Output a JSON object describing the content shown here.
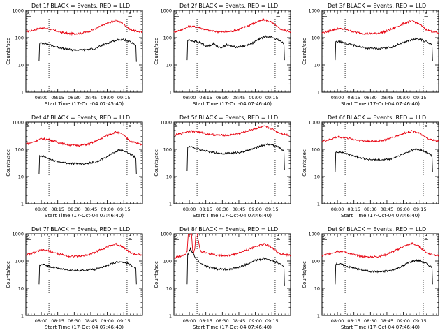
{
  "chart_data": [
    {
      "type": "line",
      "title": "Det 1f BLACK = Events, RED = LLD",
      "xlabel": "Start Time (17-Oct-04 07:45:40)",
      "ylabel": "Counts/sec",
      "x_ticks": [
        "08:00",
        "08:15",
        "08:30",
        "08:45",
        "09:00",
        "09:15"
      ],
      "y_ticks": [
        "1",
        "10",
        "100",
        "1000"
      ],
      "yscale": "log",
      "ylim": [
        1,
        1000
      ],
      "x_start_min": 0,
      "x_end_min": 106,
      "markers": {
        "start": "S",
        "end": "E"
      },
      "vlines_min": [
        21,
        92
      ],
      "series": [
        {
          "name": "BLACK = Events",
          "color": "#000000",
          "x_min": [
            12,
            12.5,
            16,
            24,
            33,
            43,
            53,
            63,
            72,
            79,
            85,
            90,
            95,
            98,
            100,
            100.5
          ],
          "values": [
            14,
            62,
            64,
            50,
            41,
            35,
            36,
            40,
            58,
            75,
            85,
            82,
            68,
            58,
            52,
            13
          ]
        },
        {
          "name": "RED = LLD",
          "color": "#e8000e",
          "x_min": [
            0,
            6,
            14,
            21,
            30,
            40,
            50,
            58,
            66,
            74,
            82,
            88,
            95,
            100,
            106
          ],
          "values": [
            165,
            185,
            230,
            215,
            165,
            140,
            145,
            175,
            240,
            340,
            430,
            340,
            200,
            175,
            160
          ]
        }
      ]
    },
    {
      "type": "line",
      "title": "Det 2f BLACK = Events, RED = LLD",
      "xlabel": "Start Time (17-Oct-04 07:46:40)",
      "ylabel": "Counts/sec",
      "x_ticks": [
        "08:00",
        "08:15",
        "08:30",
        "08:45",
        "09:00",
        "09:15"
      ],
      "y_ticks": [
        "1",
        "10",
        "100",
        "1000"
      ],
      "yscale": "log",
      "ylim": [
        1,
        1000
      ],
      "x_start_min": 0,
      "x_end_min": 106,
      "markers": {
        "start": "S",
        "end": "E"
      },
      "vlines_min": [
        21,
        92
      ],
      "series": [
        {
          "name": "BLACK = Events",
          "color": "#000000",
          "x_min": [
            12,
            12.5,
            16,
            24,
            30,
            36,
            42,
            48,
            56,
            64,
            72,
            79,
            85,
            90,
            95,
            98,
            100,
            100.5
          ],
          "values": [
            15,
            80,
            78,
            65,
            48,
            60,
            42,
            55,
            45,
            50,
            65,
            95,
            115,
            100,
            80,
            70,
            62,
            15
          ]
        },
        {
          "name": "RED = LLD",
          "color": "#e8000e",
          "x_min": [
            0,
            6,
            14,
            21,
            30,
            40,
            50,
            58,
            66,
            74,
            82,
            88,
            95,
            100,
            106
          ],
          "values": [
            165,
            190,
            260,
            250,
            190,
            165,
            165,
            195,
            260,
            360,
            460,
            380,
            230,
            190,
            165
          ]
        }
      ]
    },
    {
      "type": "line",
      "title": "Det 3f BLACK = Events, RED = LLD",
      "xlabel": "Start Time (17-Oct-04 07:46:40)",
      "ylabel": "Counts/sec",
      "x_ticks": [
        "08:00",
        "08:15",
        "08:30",
        "08:45",
        "09:00",
        "09:15"
      ],
      "y_ticks": [
        "1",
        "10",
        "100",
        "1000"
      ],
      "yscale": "log",
      "ylim": [
        1,
        1000
      ],
      "x_start_min": 0,
      "x_end_min": 106,
      "markers": {
        "start": "S",
        "end": "E"
      },
      "vlines_min": [
        21,
        92
      ],
      "series": [
        {
          "name": "BLACK = Events",
          "color": "#000000",
          "x_min": [
            12,
            12.5,
            16,
            24,
            33,
            43,
            53,
            63,
            72,
            79,
            85,
            90,
            95,
            98,
            100,
            100.5
          ],
          "values": [
            15,
            70,
            72,
            58,
            48,
            40,
            40,
            45,
            62,
            80,
            88,
            85,
            70,
            60,
            52,
            14
          ]
        },
        {
          "name": "RED = LLD",
          "color": "#e8000e",
          "x_min": [
            0,
            6,
            14,
            21,
            30,
            40,
            50,
            58,
            66,
            74,
            82,
            88,
            95,
            100,
            106
          ],
          "values": [
            150,
            175,
            215,
            205,
            160,
            140,
            145,
            170,
            230,
            330,
            420,
            330,
            195,
            170,
            150
          ]
        }
      ]
    },
    {
      "type": "line",
      "title": "Det 4f BLACK = Events, RED = LLD",
      "xlabel": "Start Time (17-Oct-04 07:46:40)",
      "ylabel": "Counts/sec",
      "x_ticks": [
        "08:00",
        "08:15",
        "08:30",
        "08:45",
        "09:00",
        "09:15"
      ],
      "y_ticks": [
        "1",
        "10",
        "100",
        "1000"
      ],
      "yscale": "log",
      "ylim": [
        1,
        1000
      ],
      "x_start_min": 0,
      "x_end_min": 106,
      "markers": {
        "start": "S",
        "end": "E"
      },
      "vlines_min": [
        21,
        92
      ],
      "series": [
        {
          "name": "BLACK = Events",
          "color": "#000000",
          "x_min": [
            12,
            12.5,
            16,
            24,
            33,
            43,
            53,
            63,
            72,
            79,
            85,
            90,
            95,
            98,
            100,
            100.5
          ],
          "values": [
            12,
            55,
            55,
            40,
            33,
            30,
            30,
            34,
            48,
            75,
            95,
            85,
            65,
            55,
            48,
            12
          ]
        },
        {
          "name": "RED = LLD",
          "color": "#e8000e",
          "x_min": [
            0,
            6,
            14,
            21,
            30,
            40,
            50,
            58,
            66,
            74,
            82,
            88,
            95,
            100,
            106
          ],
          "values": [
            155,
            180,
            245,
            230,
            175,
            145,
            140,
            160,
            220,
            330,
            430,
            350,
            200,
            170,
            150
          ]
        }
      ]
    },
    {
      "type": "line",
      "title": "Det 5f BLACK = Events, RED = LLD",
      "xlabel": "Start Time (17-Oct-04 07:46:40)",
      "ylabel": "Counts/sec",
      "x_ticks": [
        "08:00",
        "08:15",
        "08:30",
        "08:45",
        "09:00",
        "09:15"
      ],
      "y_ticks": [
        "1",
        "10",
        "100",
        "1000"
      ],
      "yscale": "log",
      "ylim": [
        1,
        1000
      ],
      "x_start_min": 0,
      "x_end_min": 106,
      "markers": {
        "start": "S",
        "end": "E"
      },
      "vlines_min": [
        21,
        92
      ],
      "series": [
        {
          "name": "BLACK = Events",
          "color": "#000000",
          "x_min": [
            12,
            12.5,
            16,
            24,
            33,
            43,
            53,
            63,
            72,
            79,
            85,
            90,
            95,
            98,
            100,
            100.5
          ],
          "values": [
            16,
            125,
            120,
            98,
            80,
            72,
            72,
            82,
            105,
            135,
            155,
            145,
            120,
            100,
            90,
            18
          ]
        },
        {
          "name": "RED = LLD",
          "color": "#e8000e",
          "x_min": [
            0,
            6,
            14,
            21,
            30,
            40,
            50,
            58,
            66,
            74,
            82,
            88,
            95,
            100,
            106
          ],
          "values": [
            330,
            370,
            470,
            450,
            370,
            330,
            330,
            370,
            460,
            580,
            690,
            590,
            420,
            360,
            330
          ]
        }
      ]
    },
    {
      "type": "line",
      "title": "Det 6f BLACK = Events, RED = LLD",
      "xlabel": "Start Time (17-Oct-04 07:46:40)",
      "ylabel": "Counts/sec",
      "x_ticks": [
        "08:00",
        "08:15",
        "08:30",
        "08:45",
        "09:00",
        "09:15"
      ],
      "y_ticks": [
        "1",
        "10",
        "100",
        "1000"
      ],
      "yscale": "log",
      "ylim": [
        1,
        1000
      ],
      "x_start_min": 0,
      "x_end_min": 106,
      "markers": {
        "start": "S",
        "end": "E"
      },
      "vlines_min": [
        21,
        92
      ],
      "series": [
        {
          "name": "BLACK = Events",
          "color": "#000000",
          "x_min": [
            12,
            12.5,
            16,
            24,
            33,
            43,
            53,
            63,
            72,
            79,
            85,
            90,
            95,
            98,
            100,
            100.5
          ],
          "values": [
            15,
            80,
            80,
            65,
            52,
            42,
            40,
            45,
            62,
            85,
            100,
            95,
            78,
            66,
            58,
            15
          ]
        },
        {
          "name": "RED = LLD",
          "color": "#e8000e",
          "x_min": [
            0,
            6,
            14,
            21,
            30,
            40,
            50,
            58,
            66,
            74,
            82,
            88,
            95,
            100,
            106
          ],
          "values": [
            200,
            220,
            285,
            270,
            225,
            200,
            200,
            225,
            290,
            380,
            480,
            400,
            260,
            220,
            200
          ]
        }
      ]
    },
    {
      "type": "line",
      "title": "Det 7f BLACK = Events, RED = LLD",
      "xlabel": "Start Time (17-Oct-04 07:46:40)",
      "ylabel": "Counts/sec",
      "x_ticks": [
        "08:00",
        "08:15",
        "08:30",
        "08:45",
        "09:00",
        "09:15"
      ],
      "y_ticks": [
        "1",
        "10",
        "100",
        "1000"
      ],
      "yscale": "log",
      "ylim": [
        1,
        1000
      ],
      "x_start_min": 0,
      "x_end_min": 106,
      "markers": {
        "start": "S",
        "end": "E"
      },
      "vlines_min": [
        21,
        92
      ],
      "series": [
        {
          "name": "BLACK = Events",
          "color": "#000000",
          "x_min": [
            12,
            12.5,
            16,
            24,
            33,
            43,
            53,
            63,
            72,
            79,
            85,
            90,
            95,
            98,
            100,
            100.5
          ],
          "values": [
            14,
            70,
            75,
            60,
            50,
            45,
            45,
            50,
            65,
            82,
            95,
            90,
            72,
            62,
            55,
            14
          ]
        },
        {
          "name": "RED = LLD",
          "color": "#e8000e",
          "x_min": [
            0,
            6,
            14,
            21,
            30,
            40,
            50,
            58,
            66,
            74,
            82,
            88,
            95,
            100,
            106
          ],
          "values": [
            165,
            195,
            250,
            235,
            180,
            150,
            150,
            175,
            240,
            330,
            420,
            340,
            200,
            175,
            165
          ]
        }
      ]
    },
    {
      "type": "line",
      "title": "Det 8f BLACK = Events, RED = LLD",
      "xlabel": "Start Time (17-Oct-04 07:46:40)",
      "ylabel": "Counts/sec",
      "x_ticks": [
        "08:00",
        "08:15",
        "08:30",
        "08:45",
        "09:00",
        "09:15"
      ],
      "y_ticks": [
        "1",
        "10",
        "100",
        "1000"
      ],
      "yscale": "log",
      "ylim": [
        1,
        1000
      ],
      "x_start_min": 0,
      "x_end_min": 106,
      "markers": {
        "start": "S",
        "end": "E"
      },
      "vlines_min": [
        21,
        92
      ],
      "series": [
        {
          "name": "BLACK = Events",
          "color": "#000000",
          "x_min": [
            12,
            12.5,
            15,
            17,
            20,
            24,
            30,
            40,
            50,
            58,
            66,
            74,
            82,
            88,
            95,
            98,
            100,
            100.5
          ],
          "values": [
            14,
            170,
            280,
            200,
            120,
            85,
            62,
            50,
            50,
            57,
            75,
            105,
            125,
            110,
            85,
            72,
            62,
            12
          ]
        },
        {
          "name": "RED = LLD",
          "color": "#e8000e",
          "x_min": [
            0,
            6,
            10,
            12,
            13,
            16,
            17,
            18,
            19,
            20,
            21,
            24,
            30,
            40,
            50,
            58,
            66,
            74,
            82,
            88,
            95,
            100,
            106
          ],
          "values": [
            130,
            150,
            180,
            220,
            1000,
            1000,
            250,
            220,
            280,
            1000,
            1000,
            230,
            200,
            160,
            160,
            190,
            250,
            340,
            420,
            340,
            200,
            175,
            160
          ]
        }
      ]
    },
    {
      "type": "line",
      "title": "Det 9f BLACK = Events, RED = LLD",
      "xlabel": "Start Time (17-Oct-04 07:46:40)",
      "ylabel": "Counts/sec",
      "x_ticks": [
        "08:00",
        "08:15",
        "08:30",
        "08:45",
        "09:00",
        "09:15"
      ],
      "y_ticks": [
        "1",
        "10",
        "100",
        "1000"
      ],
      "yscale": "log",
      "ylim": [
        1,
        1000
      ],
      "x_start_min": 0,
      "x_end_min": 106,
      "markers": {
        "start": "S",
        "end": "E"
      },
      "vlines_min": [
        21,
        92
      ],
      "series": [
        {
          "name": "BLACK = Events",
          "color": "#000000",
          "x_min": [
            12,
            12.5,
            16,
            24,
            33,
            43,
            53,
            63,
            72,
            79,
            85,
            90,
            95,
            98,
            100,
            100.5
          ],
          "values": [
            14,
            80,
            78,
            62,
            50,
            42,
            40,
            45,
            62,
            88,
            105,
            100,
            80,
            66,
            58,
            14
          ]
        },
        {
          "name": "RED = LLD",
          "color": "#e8000e",
          "x_min": [
            0,
            6,
            14,
            21,
            30,
            40,
            50,
            58,
            66,
            74,
            82,
            88,
            95,
            100,
            106
          ],
          "values": [
            155,
            180,
            230,
            215,
            165,
            140,
            145,
            170,
            235,
            340,
            440,
            350,
            205,
            175,
            160
          ]
        }
      ]
    }
  ]
}
